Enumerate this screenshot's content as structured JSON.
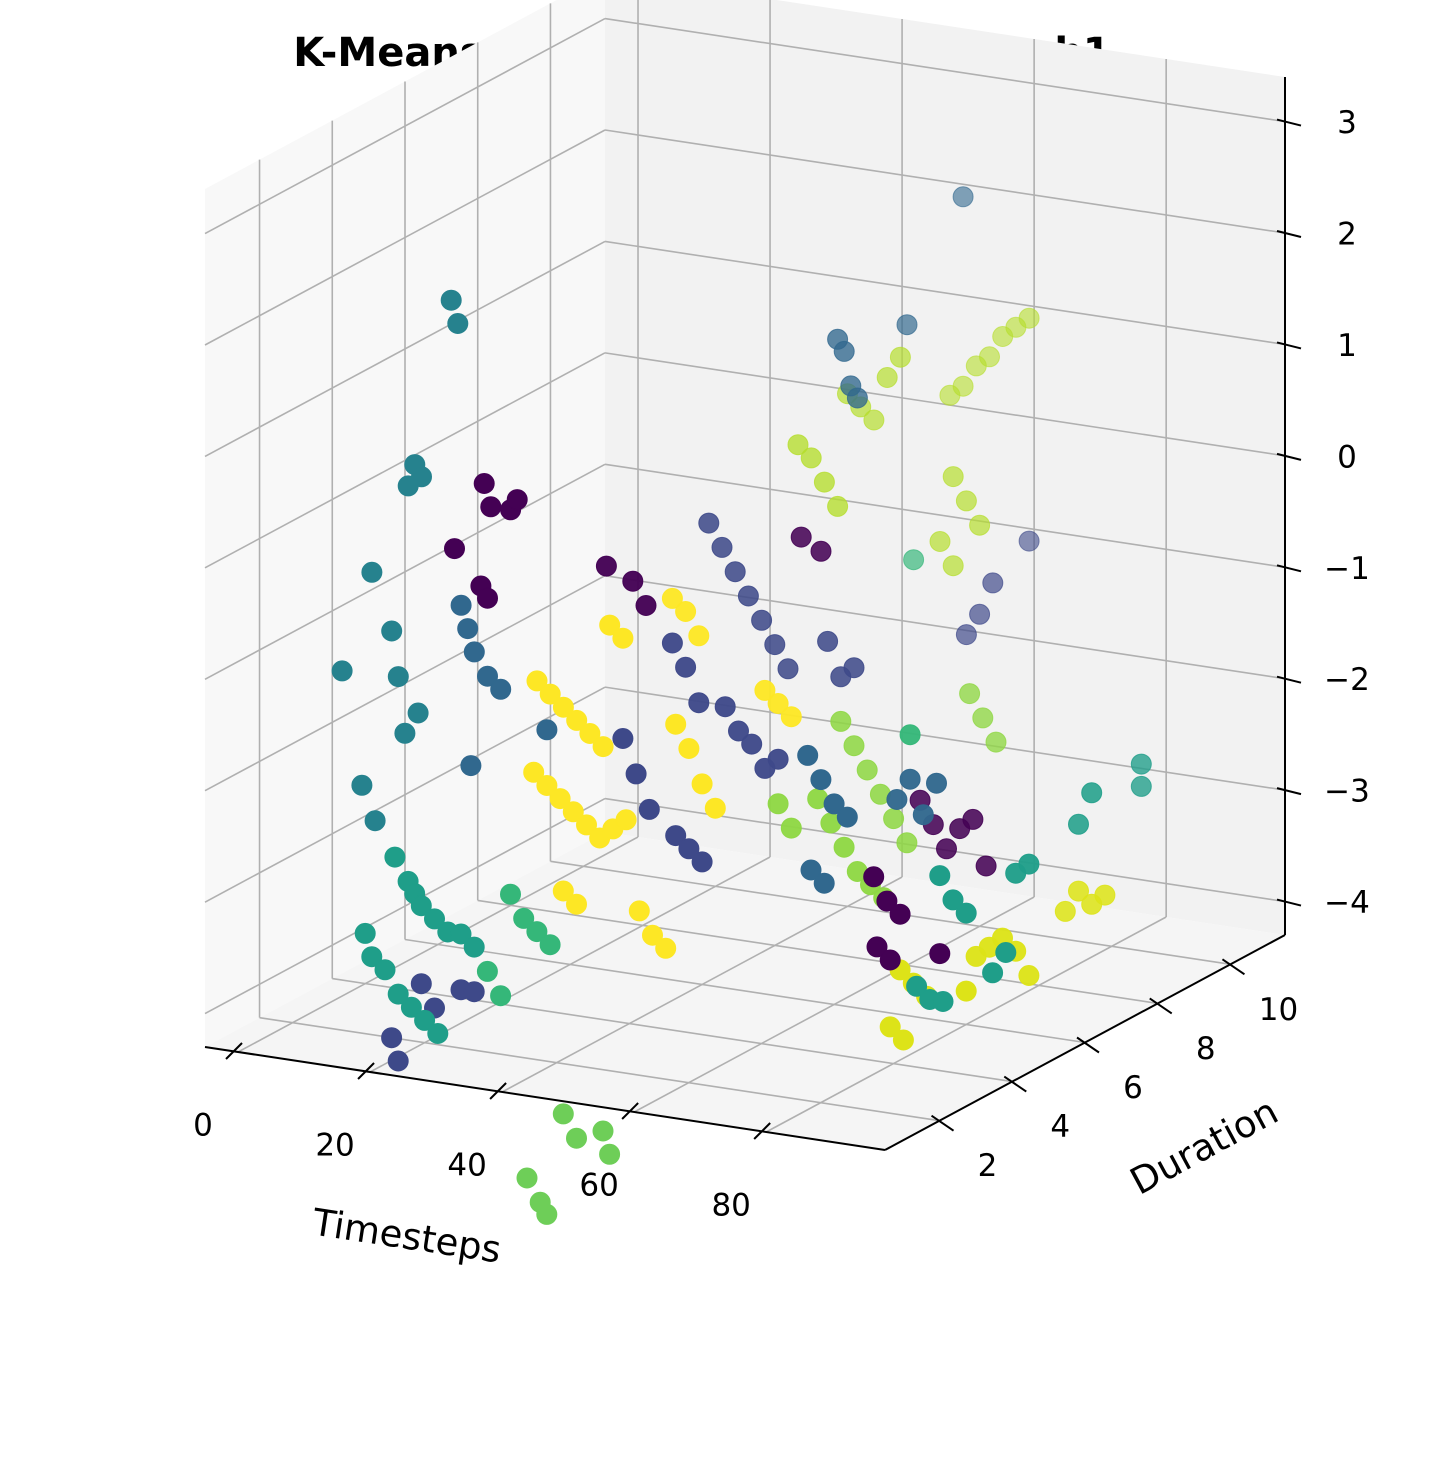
{
  "chart_data": {
    "type": "scatter",
    "title": "K-Means Clusters for Increasing_ch1",
    "xlabel": "Timesteps",
    "ylabel": "Duration",
    "zlabel": "",
    "projection": "3d",
    "grid": true,
    "legend": "none",
    "xlim": [
      -5,
      98
    ],
    "ylim": [
      0.5,
      11.5
    ],
    "zlim": [
      -4.3,
      3.4
    ],
    "xticks": [
      0,
      20,
      40,
      60,
      80
    ],
    "yticks": [
      2,
      4,
      6,
      8,
      10
    ],
    "zticks": [
      -4,
      -3,
      -2,
      -1,
      0,
      1,
      2,
      3
    ],
    "colors": {
      "c0": "#440154",
      "c1": "#481a6c",
      "c2": "#3e4989",
      "c3": "#31688e",
      "c4": "#26828e",
      "c5": "#1f9e89",
      "c6": "#35b779",
      "c7": "#6ece58",
      "c8": "#b5de2b",
      "c9": "#fde725",
      "c10": "#dde318",
      "c11": "#8fd744"
    },
    "series": [
      {
        "cluster": "c4",
        "points": [
          [
            2,
            6,
            1.5
          ],
          [
            3,
            6,
            1.3
          ],
          [
            1,
            5,
            0.0
          ],
          [
            2,
            5,
            0.2
          ],
          [
            3,
            5,
            0.1
          ],
          [
            1,
            4,
            -0.6
          ],
          [
            2,
            3,
            -1.3
          ],
          [
            4,
            4,
            -1.1
          ],
          [
            5,
            4,
            -1.5
          ],
          [
            6,
            4,
            -2.0
          ],
          [
            5,
            3,
            -2.3
          ],
          [
            7,
            3,
            -2.6
          ],
          [
            8,
            4,
            -1.8
          ]
        ]
      },
      {
        "cluster": "c0",
        "points": [
          [
            7,
            6,
            -0.1
          ],
          [
            8,
            6,
            -0.3
          ],
          [
            8,
            5,
            -0.5
          ],
          [
            11,
            6,
            -0.3
          ],
          [
            12,
            6,
            -0.2
          ],
          [
            12,
            5,
            -0.8
          ],
          [
            13,
            5,
            -0.9
          ],
          [
            20,
            7,
            -0.9
          ],
          [
            24,
            7,
            -1.0
          ],
          [
            26,
            7,
            -1.2
          ],
          [
            44,
            8,
            -0.6
          ],
          [
            47,
            8,
            -0.7
          ],
          [
            62,
            8,
            -2.8
          ],
          [
            64,
            8,
            -3.0
          ],
          [
            66,
            8,
            -3.2
          ],
          [
            68,
            8,
            -3.0
          ],
          [
            70,
            8,
            -2.9
          ],
          [
            72,
            8,
            -3.3
          ],
          [
            66,
            6,
            -3.1
          ],
          [
            68,
            6,
            -3.3
          ],
          [
            70,
            6,
            -3.4
          ],
          [
            72,
            5,
            -3.5
          ],
          [
            74,
            5,
            -3.6
          ],
          [
            76,
            6,
            -3.7
          ]
        ]
      },
      {
        "cluster": "c3",
        "points": [
          [
            9,
            5,
            -1.0
          ],
          [
            10,
            5,
            -1.2
          ],
          [
            11,
            5,
            -1.4
          ],
          [
            13,
            5,
            -1.6
          ],
          [
            15,
            5,
            -1.7
          ],
          [
            22,
            5,
            -2.0
          ],
          [
            16,
            4,
            -2.2
          ],
          [
            44,
            9,
            1.0
          ],
          [
            45,
            9,
            0.9
          ],
          [
            46,
            9,
            0.6
          ],
          [
            47,
            9,
            0.5
          ],
          [
            49,
            10,
            1.0
          ],
          [
            52,
            11,
            2.0
          ],
          [
            56,
            6,
            -2.1
          ],
          [
            58,
            6,
            -2.3
          ],
          [
            60,
            6,
            -2.5
          ],
          [
            62,
            6,
            -2.6
          ],
          [
            64,
            7,
            -2.6
          ],
          [
            66,
            7,
            -2.4
          ],
          [
            68,
            7,
            -2.7
          ],
          [
            70,
            7,
            -2.4
          ],
          [
            62,
            5,
            -2.9
          ],
          [
            64,
            5,
            -3.0
          ]
        ]
      },
      {
        "cluster": "c2",
        "points": [
          [
            30,
            8,
            -0.6
          ],
          [
            32,
            8,
            -0.8
          ],
          [
            34,
            8,
            -1.0
          ],
          [
            36,
            8,
            -1.2
          ],
          [
            38,
            8,
            -1.4
          ],
          [
            40,
            8,
            -1.6
          ],
          [
            42,
            8,
            -1.8
          ],
          [
            30,
            7,
            -1.5
          ],
          [
            32,
            7,
            -1.7
          ],
          [
            34,
            7,
            -2.0
          ],
          [
            38,
            7,
            -2.0
          ],
          [
            40,
            7,
            -2.2
          ],
          [
            42,
            7,
            -2.3
          ],
          [
            44,
            7,
            -2.5
          ],
          [
            46,
            7,
            -2.4
          ],
          [
            48,
            8,
            -1.5
          ],
          [
            50,
            8,
            -1.8
          ],
          [
            52,
            8,
            -1.7
          ],
          [
            28,
            6,
            -2.2
          ],
          [
            30,
            6,
            -2.5
          ],
          [
            32,
            6,
            -2.8
          ],
          [
            36,
            6,
            -3.0
          ],
          [
            38,
            6,
            -3.1
          ],
          [
            40,
            6,
            -3.2
          ],
          [
            58,
            10,
            -1.7
          ],
          [
            60,
            10,
            -1.5
          ],
          [
            62,
            11,
            -1.0
          ],
          [
            62,
            10,
            -1.2
          ],
          [
            14,
            3,
            -4.0
          ],
          [
            16,
            3,
            -4.2
          ],
          [
            20,
            3,
            -4.0
          ],
          [
            22,
            3,
            -4.0
          ],
          [
            15,
            2,
            -4.3
          ],
          [
            16,
            2,
            -4.5
          ]
        ]
      },
      {
        "cluster": "c5",
        "points": [
          [
            10,
            3,
            -2.9
          ],
          [
            12,
            3,
            -3.1
          ],
          [
            13,
            3,
            -3.2
          ],
          [
            14,
            3,
            -3.3
          ],
          [
            16,
            3,
            -3.4
          ],
          [
            18,
            3,
            -3.5
          ],
          [
            20,
            3,
            -3.5
          ],
          [
            22,
            3,
            -3.6
          ],
          [
            12,
            2,
            -3.6
          ],
          [
            14,
            2,
            -3.7
          ],
          [
            16,
            2,
            -3.9
          ],
          [
            18,
            2,
            -4.0
          ],
          [
            20,
            2,
            -4.1
          ],
          [
            22,
            2,
            -4.2
          ],
          [
            11,
            2,
            -3.4
          ],
          [
            76,
            6,
            -3.0
          ],
          [
            78,
            6,
            -3.2
          ],
          [
            80,
            6,
            -3.3
          ],
          [
            82,
            7,
            -3.1
          ],
          [
            84,
            7,
            -3.0
          ],
          [
            86,
            8,
            -2.8
          ],
          [
            88,
            8,
            -2.5
          ],
          [
            90,
            9,
            -2.4
          ],
          [
            90,
            9,
            -2.6
          ],
          [
            78,
            5,
            -3.8
          ],
          [
            80,
            5,
            -3.9
          ],
          [
            82,
            5,
            -3.9
          ],
          [
            84,
            6,
            -3.8
          ],
          [
            86,
            6,
            -3.6
          ]
        ]
      },
      {
        "cluster": "c9",
        "points": [
          [
            15,
            6,
            -1.8
          ],
          [
            17,
            6,
            -1.9
          ],
          [
            19,
            6,
            -2.0
          ],
          [
            21,
            6,
            -2.1
          ],
          [
            23,
            6,
            -2.2
          ],
          [
            25,
            6,
            -2.3
          ],
          [
            20,
            5,
            -2.4
          ],
          [
            22,
            5,
            -2.5
          ],
          [
            24,
            5,
            -2.6
          ],
          [
            26,
            6,
            -1.2
          ],
          [
            28,
            6,
            -1.3
          ],
          [
            30,
            7,
            -1.1
          ],
          [
            32,
            7,
            -1.2
          ],
          [
            34,
            7,
            -1.4
          ],
          [
            26,
            5,
            -2.7
          ],
          [
            28,
            5,
            -2.8
          ],
          [
            30,
            5,
            -2.9
          ],
          [
            32,
            5,
            -2.8
          ],
          [
            34,
            5,
            -2.7
          ],
          [
            36,
            6,
            -2.0
          ],
          [
            38,
            6,
            -2.2
          ],
          [
            40,
            6,
            -2.5
          ],
          [
            42,
            6,
            -2.7
          ],
          [
            44,
            7,
            -1.8
          ],
          [
            46,
            7,
            -1.9
          ],
          [
            48,
            7,
            -2.0
          ],
          [
            30,
            4,
            -3.2
          ],
          [
            32,
            4,
            -3.3
          ],
          [
            36,
            5,
            -3.5
          ],
          [
            38,
            5,
            -3.7
          ],
          [
            40,
            5,
            -3.8
          ]
        ]
      },
      {
        "cluster": "c8",
        "points": [
          [
            40,
            10,
            0.3
          ],
          [
            42,
            10,
            0.2
          ],
          [
            44,
            10,
            0.1
          ],
          [
            46,
            10,
            0.5
          ],
          [
            48,
            10,
            0.7
          ],
          [
            38,
            9,
            0.0
          ],
          [
            40,
            9,
            -0.1
          ],
          [
            42,
            9,
            -0.3
          ],
          [
            44,
            9,
            -0.5
          ],
          [
            50,
            11,
            0.2
          ],
          [
            52,
            11,
            0.3
          ],
          [
            54,
            11,
            0.5
          ],
          [
            56,
            11,
            0.6
          ],
          [
            58,
            11,
            0.8
          ],
          [
            60,
            11,
            0.9
          ],
          [
            62,
            11,
            1.0
          ],
          [
            56,
            10,
            -0.3
          ],
          [
            58,
            10,
            -0.5
          ],
          [
            60,
            10,
            -0.7
          ],
          [
            54,
            10,
            -0.9
          ],
          [
            56,
            10,
            -1.1
          ]
        ]
      },
      {
        "cluster": "c6",
        "points": [
          [
            22,
            4,
            -3.3
          ],
          [
            24,
            4,
            -3.5
          ],
          [
            26,
            4,
            -3.6
          ],
          [
            28,
            4,
            -3.7
          ],
          [
            24,
            3,
            -3.8
          ],
          [
            26,
            3,
            -4.0
          ],
          [
            50,
            10,
            -1.1
          ],
          [
            66,
            7,
            -2.0
          ]
        ]
      },
      {
        "cluster": "c11",
        "points": [
          [
            50,
            8,
            -2.2
          ],
          [
            52,
            8,
            -2.4
          ],
          [
            54,
            8,
            -2.6
          ],
          [
            56,
            8,
            -2.8
          ],
          [
            58,
            8,
            -3.0
          ],
          [
            60,
            8,
            -3.2
          ],
          [
            52,
            7,
            -2.7
          ],
          [
            54,
            7,
            -2.9
          ],
          [
            56,
            7,
            -3.1
          ],
          [
            58,
            7,
            -3.3
          ],
          [
            60,
            7,
            -3.4
          ],
          [
            62,
            7,
            -3.5
          ],
          [
            46,
            7,
            -2.8
          ],
          [
            48,
            7,
            -3.0
          ],
          [
            64,
            9,
            -2.0
          ],
          [
            66,
            9,
            -2.2
          ],
          [
            68,
            9,
            -2.4
          ]
        ]
      },
      {
        "cluster": "c7",
        "points": [
          [
            30,
            4,
            -5.2
          ],
          [
            32,
            4,
            -5.4
          ],
          [
            30,
            3,
            -5.6
          ],
          [
            32,
            3,
            -5.8
          ],
          [
            33,
            3,
            -5.9
          ],
          [
            36,
            4,
            -5.3
          ],
          [
            37,
            4,
            -5.5
          ]
        ]
      },
      {
        "cluster": "c10",
        "points": [
          [
            70,
            6,
            -3.9
          ],
          [
            72,
            6,
            -4.0
          ],
          [
            74,
            6,
            -4.1
          ],
          [
            76,
            7,
            -3.9
          ],
          [
            78,
            7,
            -3.8
          ],
          [
            80,
            7,
            -3.7
          ],
          [
            82,
            7,
            -3.8
          ],
          [
            84,
            8,
            -3.6
          ],
          [
            86,
            8,
            -3.4
          ],
          [
            74,
            5,
            -4.2
          ],
          [
            76,
            5,
            -4.3
          ],
          [
            80,
            6,
            -4.0
          ],
          [
            84,
            7,
            -4.0
          ],
          [
            88,
            8,
            -3.5
          ],
          [
            90,
            8,
            -3.4
          ]
        ]
      }
    ]
  }
}
